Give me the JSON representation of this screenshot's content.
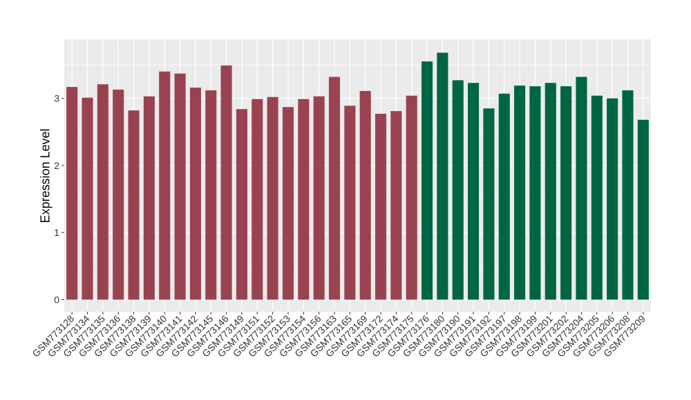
{
  "chart_data": {
    "type": "bar",
    "title": "",
    "xlabel": "",
    "ylabel": "Expression Level",
    "ylim": [
      -0.18,
      3.88
    ],
    "yticks": [
      0,
      1,
      2,
      3
    ],
    "grid": true,
    "colors": {
      "group_a": "#9a4350",
      "group_b": "#006543",
      "panel": "#ebebeb",
      "grid": "#ffffff"
    },
    "categories": [
      "GSM773128",
      "GSM773134",
      "GSM773135",
      "GSM773136",
      "GSM773138",
      "GSM773139",
      "GSM773140",
      "GSM773141",
      "GSM773142",
      "GSM773145",
      "GSM773146",
      "GSM773149",
      "GSM773151",
      "GSM773152",
      "GSM773153",
      "GSM773154",
      "GSM773156",
      "GSM773163",
      "GSM773165",
      "GSM773169",
      "GSM773172",
      "GSM773174",
      "GSM773175",
      "GSM773176",
      "GSM773180",
      "GSM773190",
      "GSM773191",
      "GSM773192",
      "GSM773197",
      "GSM773198",
      "GSM773199",
      "GSM773201",
      "GSM773202",
      "GSM773204",
      "GSM773205",
      "GSM773206",
      "GSM773208",
      "GSM773209"
    ],
    "values": [
      3.17,
      3.01,
      3.21,
      3.13,
      2.82,
      3.03,
      3.4,
      3.37,
      3.16,
      3.12,
      3.49,
      2.84,
      2.99,
      3.02,
      2.87,
      2.99,
      3.03,
      3.32,
      2.89,
      3.11,
      2.77,
      2.81,
      3.04,
      3.55,
      3.68,
      3.27,
      3.23,
      2.85,
      3.07,
      3.19,
      3.18,
      3.23,
      3.18,
      3.32,
      3.04,
      3.0,
      3.12,
      2.68
    ],
    "groups": [
      "a",
      "a",
      "a",
      "a",
      "a",
      "a",
      "a",
      "a",
      "a",
      "a",
      "a",
      "a",
      "a",
      "a",
      "a",
      "a",
      "a",
      "a",
      "a",
      "a",
      "a",
      "a",
      "a",
      "b",
      "b",
      "b",
      "b",
      "b",
      "b",
      "b",
      "b",
      "b",
      "b",
      "b",
      "b",
      "b",
      "b",
      "b"
    ]
  }
}
